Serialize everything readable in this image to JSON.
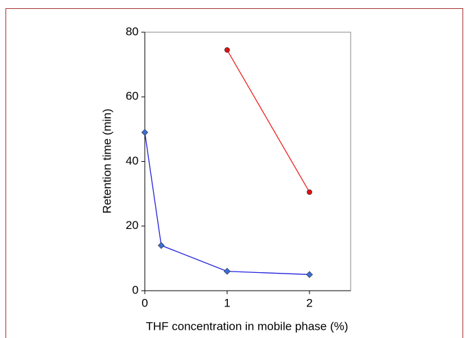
{
  "chart_data": {
    "type": "line",
    "x_label": "THF concentration in mobile phase (%)",
    "y_label": "Retention time (min)",
    "series": [
      {
        "color": "#2222dd",
        "marker": "diamond",
        "marker_color": "#3b6fd6",
        "x": [
          0,
          0.2,
          1,
          2
        ],
        "values": [
          49,
          14,
          6,
          5
        ]
      },
      {
        "color": "#ee2222",
        "marker": "circle",
        "marker_color": "#dd1111",
        "x": [
          1,
          2
        ],
        "values": [
          74.5,
          30.5
        ]
      }
    ],
    "xlim": [
      0,
      2.5
    ],
    "xticks": [
      0,
      1,
      2
    ],
    "ylim": [
      0,
      80
    ],
    "yticks": [
      0,
      20,
      40,
      60,
      80
    ]
  }
}
